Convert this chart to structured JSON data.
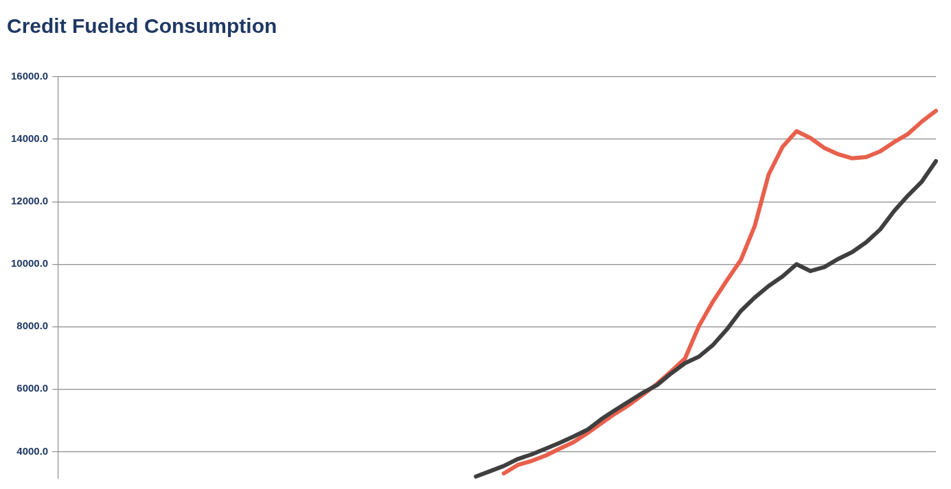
{
  "chart_data": {
    "type": "line",
    "title": "Credit Fueled Consumption",
    "categories": [
      null,
      null,
      null,
      null,
      null,
      null,
      null,
      null,
      null,
      null,
      null,
      null,
      null,
      null,
      null,
      null,
      null,
      null,
      null,
      null,
      null,
      null,
      null,
      null,
      null,
      null,
      null,
      null,
      null,
      null,
      null,
      null,
      null,
      null,
      null,
      null,
      null,
      null,
      null,
      null,
      null,
      null,
      null,
      null,
      null,
      null,
      null,
      null,
      null,
      null,
      null,
      null,
      null,
      null,
      null,
      null,
      null,
      null,
      null,
      null,
      null,
      null,
      null,
      null
    ],
    "series": [
      {
        "color": "#3f3f3f",
        "values": [
          null,
          null,
          null,
          null,
          null,
          null,
          null,
          null,
          null,
          null,
          null,
          null,
          null,
          null,
          null,
          null,
          null,
          null,
          null,
          null,
          null,
          null,
          null,
          null,
          null,
          null,
          null,
          null,
          null,
          null,
          3200,
          3370,
          3540,
          3760,
          3910,
          4090,
          4280,
          4480,
          4700,
          5040,
          5330,
          5610,
          5890,
          6130,
          6500,
          6830,
          7040,
          7410,
          7910,
          8500,
          8930,
          9300,
          9610,
          10000,
          9780,
          9910,
          10170,
          10390,
          10700,
          11110,
          11700,
          12200,
          12650,
          13300
        ]
      },
      {
        "color": "#e8604c",
        "values": [
          null,
          null,
          null,
          null,
          null,
          null,
          null,
          null,
          null,
          null,
          null,
          null,
          null,
          null,
          null,
          null,
          null,
          null,
          null,
          null,
          null,
          null,
          null,
          null,
          null,
          null,
          null,
          null,
          null,
          null,
          null,
          null,
          3300,
          3570,
          3700,
          3870,
          4090,
          4300,
          4590,
          4910,
          5220,
          5500,
          5830,
          6170,
          6570,
          6980,
          8020,
          8800,
          9480,
          10130,
          11220,
          12870,
          13760,
          14260,
          14040,
          13720,
          13520,
          13390,
          13430,
          13610,
          13910,
          14170,
          14570,
          14910
        ]
      }
    ],
    "ylim": [
      3130,
      16000
    ],
    "yticks": [
      {
        "value": 4000,
        "label": "4000.0"
      },
      {
        "value": 6000,
        "label": "6000.0"
      },
      {
        "value": 8000,
        "label": "8000.0"
      },
      {
        "value": 10000,
        "label": "10000.0"
      },
      {
        "value": 12000,
        "label": "12000.0"
      },
      {
        "value": 14000,
        "label": "14000.0"
      },
      {
        "value": 16000,
        "label": "16000.0"
      }
    ],
    "grid": "y",
    "legend": false,
    "tick_labels": "y",
    "marker": "none",
    "line_style": "solid"
  }
}
